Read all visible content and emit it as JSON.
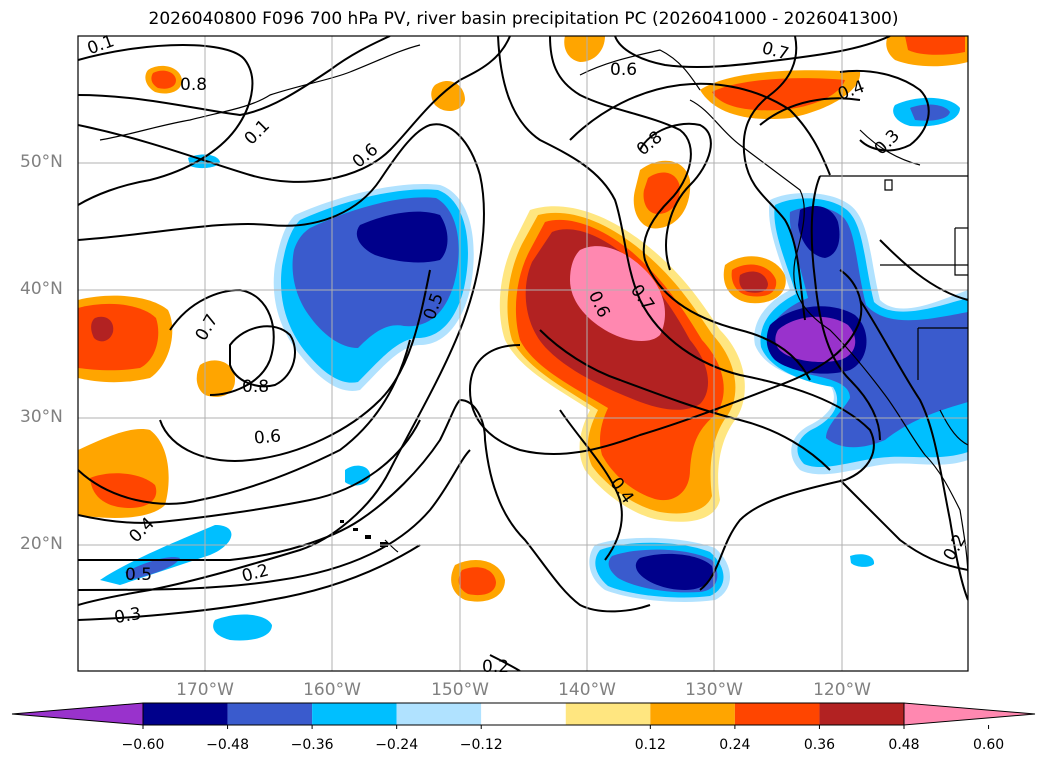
{
  "title": "2026040800 F096 700 hPa PV, river basin precipitation PC (2026041000 - 2026041300)",
  "lat_labels": [
    "50°N",
    "40°N",
    "30°N",
    "20°N"
  ],
  "lon_labels": [
    "170°W",
    "160°W",
    "150°W",
    "140°W",
    "130°W",
    "120°W"
  ],
  "colorbar": {
    "colors": [
      "#9932cc",
      "#00008b",
      "#3a5bcd",
      "#00bfff",
      "#b0e2ff",
      "#ffffff",
      "#ffe680",
      "#ffa500",
      "#ff4500",
      "#b22222",
      "#ff88b0"
    ],
    "tick_labels": [
      "−0.60",
      "−0.48",
      "−0.36",
      "−0.24",
      "−0.12",
      "0.12",
      "0.24",
      "0.36",
      "0.48",
      "0.60"
    ]
  },
  "contour_labels": [
    "0.8",
    "0.6",
    "0.7",
    "0.6",
    "0.7",
    "0.4",
    "0.3",
    "0.8",
    "0.6",
    "0.7",
    "0.5",
    "0.8",
    "0.6",
    "0.4",
    "0.5",
    "0.3",
    "0.2",
    "0.4",
    "0.2",
    "0.2",
    "0.1",
    "0.1"
  ]
}
